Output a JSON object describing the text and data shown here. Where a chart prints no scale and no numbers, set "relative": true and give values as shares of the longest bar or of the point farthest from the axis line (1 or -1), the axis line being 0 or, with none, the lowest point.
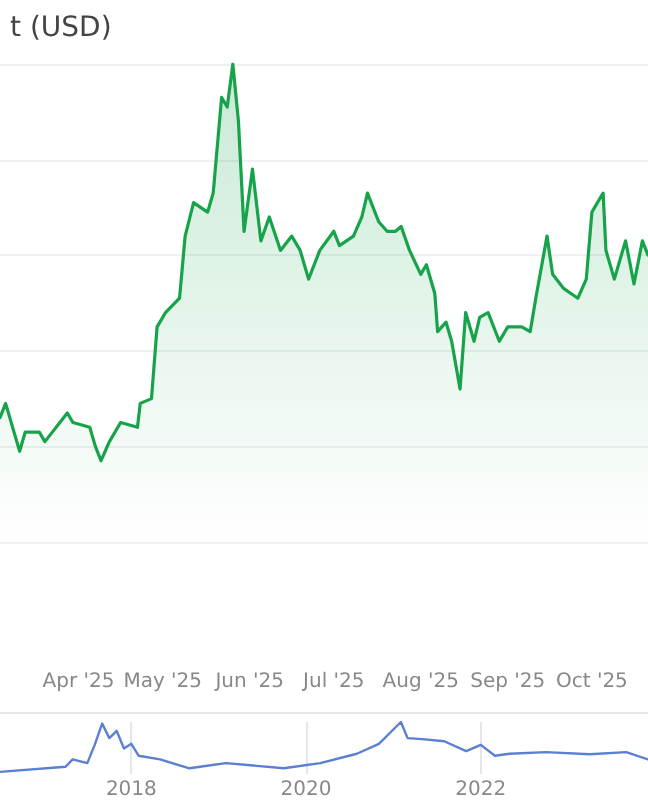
{
  "chart_data": [
    {
      "type": "area",
      "title": "t (USD)",
      "relative": true,
      "grid": "y",
      "marker": "none",
      "line_style": "solid",
      "x": [
        "2025-03-04",
        "2025-03-06",
        "2025-03-11",
        "2025-03-13",
        "2025-03-18",
        "2025-03-20",
        "2025-03-28",
        "2025-03-30",
        "2025-04-05",
        "2025-04-07",
        "2025-04-09",
        "2025-04-12",
        "2025-04-16",
        "2025-04-22",
        "2025-04-23",
        "2025-04-27",
        "2025-04-29",
        "2025-05-01",
        "2025-05-02",
        "2025-05-07",
        "2025-05-09",
        "2025-05-12",
        "2025-05-17",
        "2025-05-19",
        "2025-05-22",
        "2025-05-24",
        "2025-05-26",
        "2025-05-28",
        "2025-05-30",
        "2025-06-02",
        "2025-06-05",
        "2025-06-08",
        "2025-06-12",
        "2025-06-16",
        "2025-06-19",
        "2025-06-22",
        "2025-06-26",
        "2025-07-01",
        "2025-07-03",
        "2025-07-08",
        "2025-07-11",
        "2025-07-13",
        "2025-07-17",
        "2025-07-20",
        "2025-07-23",
        "2025-07-25",
        "2025-07-28",
        "2025-08-01",
        "2025-08-03",
        "2025-08-06",
        "2025-08-07",
        "2025-08-10",
        "2025-08-12",
        "2025-08-15",
        "2025-08-17",
        "2025-08-20",
        "2025-08-22",
        "2025-08-25",
        "2025-08-29",
        "2025-09-01",
        "2025-09-06",
        "2025-09-09",
        "2025-09-11",
        "2025-09-15",
        "2025-09-17",
        "2025-09-21",
        "2025-09-26",
        "2025-09-29",
        "2025-10-01",
        "2025-10-05",
        "2025-10-06",
        "2025-10-09",
        "2025-10-13",
        "2025-10-16",
        "2025-10-19",
        "2025-10-21"
      ],
      "series": [
        {
          "color": "#16a34a",
          "values": [
            0.26,
            0.29,
            0.19,
            0.23,
            0.23,
            0.21,
            0.27,
            0.25,
            0.24,
            0.2,
            0.17,
            0.21,
            0.25,
            0.24,
            0.29,
            0.3,
            0.45,
            0.47,
            0.48,
            0.51,
            0.64,
            0.71,
            0.69,
            0.73,
            0.93,
            0.91,
            1,
            0.88,
            0.65,
            0.78,
            0.63,
            0.68,
            0.61,
            0.64,
            0.61,
            0.55,
            0.61,
            0.65,
            0.62,
            0.64,
            0.68,
            0.73,
            0.67,
            0.65,
            0.65,
            0.66,
            0.61,
            0.56,
            0.58,
            0.52,
            0.44,
            0.46,
            0.42,
            0.32,
            0.48,
            0.42,
            0.47,
            0.48,
            0.42,
            0.45,
            0.45,
            0.44,
            0.51,
            0.64,
            0.56,
            0.53,
            0.51,
            0.55,
            0.69,
            0.73,
            0.61,
            0.55,
            0.63,
            0.54,
            0.63,
            0.6
          ]
        }
      ],
      "xlim": [
        "2025-03-04",
        "2025-10-21"
      ],
      "xticks": [
        {
          "value": "2025-04-01",
          "label": "Apr '25"
        },
        {
          "value": "2025-05-01",
          "label": "May '25"
        },
        {
          "value": "2025-06-01",
          "label": "Jun '25"
        },
        {
          "value": "2025-07-01",
          "label": "Jul '25"
        },
        {
          "value": "2025-08-01",
          "label": "Aug '25"
        },
        {
          "value": "2025-09-01",
          "label": "Sep '25"
        },
        {
          "value": "2025-10-01",
          "label": "Oct '25"
        }
      ]
    },
    {
      "type": "line",
      "relative": true,
      "grid": "x",
      "marker": "none",
      "x": [
        "2016-07",
        "2017-04",
        "2017-05",
        "2017-07",
        "2017-08",
        "2017-09",
        "2017-10",
        "2017-11",
        "2017-12",
        "2018-01",
        "2018-02",
        "2018-05",
        "2018-09",
        "2019-02",
        "2019-10",
        "2020-03",
        "2020-08",
        "2020-11",
        "2021-02",
        "2021-03",
        "2021-05",
        "2021-08",
        "2021-11",
        "2022-01",
        "2022-03",
        "2022-05",
        "2022-10",
        "2023-04",
        "2023-09",
        "2023-12"
      ],
      "series": [
        {
          "color": "#5b7fd1",
          "values": [
            0.04,
            0.14,
            0.28,
            0.21,
            0.56,
            0.97,
            0.69,
            0.83,
            0.49,
            0.58,
            0.35,
            0.28,
            0.11,
            0.21,
            0.11,
            0.21,
            0.39,
            0.58,
            1,
            0.69,
            0.67,
            0.63,
            0.44,
            0.56,
            0.35,
            0.39,
            0.42,
            0.38,
            0.42,
            0.28
          ]
        }
      ],
      "xlim": [
        "2016-07",
        "2023-12"
      ],
      "xticks": [
        {
          "value": "2018",
          "label": "2018"
        },
        {
          "value": "2020",
          "label": "2020"
        },
        {
          "value": "2022",
          "label": "2022"
        }
      ]
    }
  ]
}
